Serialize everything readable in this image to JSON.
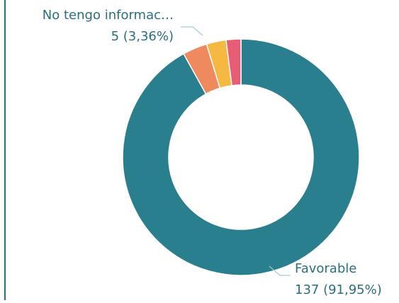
{
  "chart_data": {
    "type": "donut",
    "categories": [
      "Favorable",
      "No tengo informac…",
      null,
      null
    ],
    "values": [
      137,
      5,
      4,
      3
    ],
    "value_labels": [
      "137 (91,95%)",
      "5 (3,36%)",
      null,
      null
    ],
    "colors": [
      "#2a7f8f",
      "#ef8a5e",
      "#f5b942",
      "#e85d75"
    ]
  }
}
